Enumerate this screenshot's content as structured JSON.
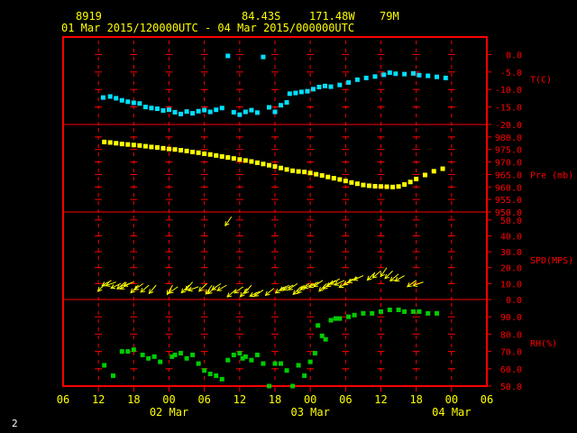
{
  "header": {
    "station": "8919",
    "lat": "84.43S",
    "lon": "171.48W",
    "elev": "79M",
    "time_range": "01 Mar 2015/120000UTC - 04 Mar 2015/000000UTC"
  },
  "page_number": "2",
  "colors": {
    "background": "#000000",
    "frame": "#ff0000",
    "grid": "#ff0000",
    "text": "#ffff00",
    "temperature": "#00e0ff",
    "pressure": "#ffff00",
    "wind": "#ffff00",
    "rh": "#00cc00"
  },
  "chart_data": {
    "type": "scatter",
    "x_axis": {
      "unit": "hours since 01 Mar 2015 06 UTC",
      "range": [
        0,
        72
      ],
      "tick_labels": [
        "06",
        "12",
        "18",
        "00",
        "06",
        "12",
        "18",
        "00",
        "06",
        "12",
        "18",
        "00",
        "06"
      ],
      "date_labels": [
        {
          "label": "02 Mar",
          "x": 18
        },
        {
          "label": "03 Mar",
          "x": 42
        },
        {
          "label": "04 Mar",
          "x": 66
        }
      ]
    },
    "panels": [
      {
        "name": "temperature",
        "ylabel": "T(C)",
        "ylim": [
          -20,
          5
        ],
        "ticks": [
          0,
          -5,
          -10,
          -15,
          -20
        ],
        "tick_labels": [
          "0.0",
          "-5.0",
          "-10.0",
          "-15.0",
          "-20.0"
        ],
        "points": [
          [
            6.8,
            -12.3
          ],
          [
            8,
            -12.0
          ],
          [
            9,
            -12.5
          ],
          [
            10,
            -13.1
          ],
          [
            11,
            -13.5
          ],
          [
            12,
            -13.8
          ],
          [
            13,
            -14.0
          ],
          [
            14,
            -15.0
          ],
          [
            15,
            -15.3
          ],
          [
            16,
            -15.5
          ],
          [
            17,
            -16.0
          ],
          [
            18,
            -15.8
          ],
          [
            19,
            -16.5
          ],
          [
            20,
            -17.0
          ],
          [
            21,
            -16.3
          ],
          [
            22,
            -16.8
          ],
          [
            23,
            -16.2
          ],
          [
            24,
            -15.9
          ],
          [
            25,
            -16.4
          ],
          [
            26,
            -15.8
          ],
          [
            27,
            -15.3
          ],
          [
            28,
            -0.4
          ],
          [
            29,
            -16.5
          ],
          [
            30,
            -17.2
          ],
          [
            31,
            -16.4
          ],
          [
            32,
            -15.9
          ],
          [
            33,
            -16.6
          ],
          [
            34,
            -0.7
          ],
          [
            35,
            -15.1
          ],
          [
            36,
            -16.4
          ],
          [
            37,
            -14.5
          ],
          [
            38,
            -13.7
          ],
          [
            38.5,
            -11.2
          ],
          [
            39.5,
            -11.0
          ],
          [
            40.5,
            -10.7
          ],
          [
            41.5,
            -10.5
          ],
          [
            42.5,
            -9.9
          ],
          [
            43.5,
            -9.3
          ],
          [
            44.5,
            -9.0
          ],
          [
            45.5,
            -9.2
          ],
          [
            47,
            -8.7
          ],
          [
            48.5,
            -8.0
          ],
          [
            50,
            -7.2
          ],
          [
            51.5,
            -6.7
          ],
          [
            53,
            -6.3
          ],
          [
            54.5,
            -5.8
          ],
          [
            55.5,
            -5.2
          ],
          [
            56.5,
            -5.5
          ],
          [
            58,
            -5.6
          ],
          [
            59.5,
            -5.4
          ],
          [
            60.5,
            -5.9
          ],
          [
            62,
            -6.1
          ],
          [
            63.5,
            -6.4
          ],
          [
            65,
            -6.7
          ]
        ]
      },
      {
        "name": "pressure",
        "ylabel": "Pre (mb)",
        "ylim": [
          950,
          985
        ],
        "ticks": [
          980,
          975,
          970,
          965,
          960,
          955,
          950
        ],
        "tick_labels": [
          "980.0",
          "975.0",
          "970.0",
          "965.0",
          "960.0",
          "955.0",
          "950.0"
        ],
        "points": [
          [
            7,
            978.0
          ],
          [
            8,
            977.8
          ],
          [
            9,
            977.5
          ],
          [
            10,
            977.2
          ],
          [
            11,
            977.0
          ],
          [
            12,
            976.8
          ],
          [
            13,
            976.6
          ],
          [
            14,
            976.3
          ],
          [
            15,
            976.0
          ],
          [
            16,
            975.8
          ],
          [
            17,
            975.5
          ],
          [
            18,
            975.2
          ],
          [
            19,
            975.0
          ],
          [
            20,
            974.7
          ],
          [
            21,
            974.4
          ],
          [
            22,
            974.0
          ],
          [
            23,
            973.7
          ],
          [
            24,
            973.3
          ],
          [
            25,
            973.0
          ],
          [
            26,
            972.6
          ],
          [
            27,
            972.2
          ],
          [
            28,
            971.8
          ],
          [
            29,
            971.4
          ],
          [
            30,
            971.0
          ],
          [
            31,
            970.6
          ],
          [
            32,
            970.2
          ],
          [
            33,
            969.7
          ],
          [
            34,
            969.2
          ],
          [
            35,
            968.7
          ],
          [
            36,
            968.2
          ],
          [
            37,
            967.6
          ],
          [
            38,
            967.0
          ],
          [
            39,
            966.5
          ],
          [
            40,
            966.2
          ],
          [
            41,
            966.0
          ],
          [
            42,
            965.6
          ],
          [
            43,
            965.1
          ],
          [
            44,
            964.6
          ],
          [
            45,
            964.0
          ],
          [
            46,
            963.5
          ],
          [
            47,
            963.0
          ],
          [
            48,
            962.4
          ],
          [
            49,
            961.8
          ],
          [
            50,
            961.3
          ],
          [
            51,
            960.8
          ],
          [
            52,
            960.5
          ],
          [
            53,
            960.3
          ],
          [
            54,
            960.2
          ],
          [
            55,
            960.1
          ],
          [
            56,
            960.0
          ],
          [
            57,
            960.2
          ],
          [
            58,
            961.0
          ],
          [
            59,
            962.0
          ],
          [
            60,
            963.2
          ],
          [
            61.5,
            964.8
          ],
          [
            63,
            966.3
          ],
          [
            64.5,
            967.3
          ]
        ]
      },
      {
        "name": "wind_speed",
        "ylabel": "SPD(MPS)",
        "ylim": [
          0,
          55
        ],
        "ticks": [
          50,
          40,
          30,
          20,
          10,
          0
        ],
        "tick_labels": [
          "50.0",
          "40.0",
          "30.0",
          "20.0",
          "10.0",
          "0.0"
        ],
        "barbs": [
          [
            7.2,
            10,
            225
          ],
          [
            8.2,
            12,
            240
          ],
          [
            9,
            11,
            250
          ],
          [
            9.8,
            10,
            245
          ],
          [
            10.6,
            11,
            230
          ],
          [
            11.3,
            10,
            240
          ],
          [
            12,
            11,
            250
          ],
          [
            12.8,
            9,
            225
          ],
          [
            13.6,
            10,
            235
          ],
          [
            14.6,
            9,
            230
          ],
          [
            15.8,
            9,
            220
          ],
          [
            18.6,
            9,
            210
          ],
          [
            19.5,
            8,
            235
          ],
          [
            21.4,
            9,
            225
          ],
          [
            22,
            11,
            220
          ],
          [
            23,
            8,
            250
          ],
          [
            24.4,
            10,
            225
          ],
          [
            25.3,
            9,
            215
          ],
          [
            26,
            8,
            230
          ],
          [
            26.8,
            10,
            235
          ],
          [
            27.8,
            9,
            240
          ],
          [
            28.6,
            52,
            215
          ],
          [
            29.3,
            6,
            230
          ],
          [
            30.6,
            8,
            235
          ],
          [
            31.3,
            7,
            220
          ],
          [
            32,
            9,
            220
          ],
          [
            33.4,
            5,
            245
          ],
          [
            34,
            6,
            235
          ],
          [
            35.8,
            7,
            230
          ],
          [
            37.6,
            8,
            235
          ],
          [
            38.4,
            9,
            240
          ],
          [
            39.1,
            9,
            245
          ],
          [
            39.8,
            10,
            235
          ],
          [
            40.4,
            8,
            225
          ],
          [
            41,
            9,
            220
          ],
          [
            41.8,
            10,
            235
          ],
          [
            42.6,
            10,
            245
          ],
          [
            43.4,
            11,
            240
          ],
          [
            44.1,
            12,
            235
          ],
          [
            44.8,
            10,
            225
          ],
          [
            45.6,
            11,
            230
          ],
          [
            46.3,
            12,
            235
          ],
          [
            47,
            13,
            240
          ],
          [
            47.8,
            12,
            245
          ],
          [
            48.5,
            11,
            240
          ],
          [
            49.2,
            13,
            235
          ],
          [
            50,
            14,
            240
          ],
          [
            51,
            15,
            245
          ],
          [
            53,
            17,
            225
          ],
          [
            54,
            18,
            230
          ],
          [
            55,
            20,
            215
          ],
          [
            56,
            18,
            225
          ],
          [
            57,
            16,
            230
          ],
          [
            58,
            15,
            240
          ],
          [
            60,
            12,
            235
          ],
          [
            61.2,
            11,
            250
          ]
        ]
      },
      {
        "name": "relative_humidity",
        "ylabel": "RH(%)",
        "ylim": [
          50,
          100
        ],
        "ticks": [
          90,
          80,
          70,
          60,
          50
        ],
        "tick_labels": [
          "90.0",
          "80.0",
          "70.0",
          "60.0",
          "50.0"
        ],
        "points": [
          [
            7,
            62
          ],
          [
            8.5,
            56
          ],
          [
            10,
            70
          ],
          [
            11,
            70
          ],
          [
            12,
            71
          ],
          [
            13.5,
            68
          ],
          [
            14.5,
            66
          ],
          [
            15.5,
            67
          ],
          [
            16.5,
            64
          ],
          [
            18.5,
            67
          ],
          [
            19,
            68
          ],
          [
            20,
            69
          ],
          [
            21,
            66
          ],
          [
            22,
            68
          ],
          [
            23,
            63
          ],
          [
            24,
            59
          ],
          [
            25,
            57
          ],
          [
            26,
            56
          ],
          [
            27,
            54
          ],
          [
            28,
            65
          ],
          [
            29,
            68
          ],
          [
            30,
            69
          ],
          [
            30.5,
            66
          ],
          [
            31,
            67
          ],
          [
            32,
            65
          ],
          [
            33,
            68
          ],
          [
            34,
            63
          ],
          [
            35,
            50
          ],
          [
            36,
            63
          ],
          [
            37,
            63
          ],
          [
            38,
            59
          ],
          [
            39,
            50
          ],
          [
            40,
            62
          ],
          [
            41,
            56
          ],
          [
            42,
            64
          ],
          [
            42.8,
            69
          ],
          [
            43.3,
            85
          ],
          [
            44,
            79
          ],
          [
            44.6,
            77
          ],
          [
            45.5,
            88
          ],
          [
            46.3,
            89
          ],
          [
            47,
            89
          ],
          [
            48.5,
            90
          ],
          [
            49.5,
            91
          ],
          [
            51,
            92
          ],
          [
            52.5,
            92
          ],
          [
            54,
            93
          ],
          [
            55.5,
            94
          ],
          [
            57,
            94
          ],
          [
            58,
            93
          ],
          [
            59.5,
            93
          ],
          [
            60.5,
            93
          ],
          [
            62,
            92
          ],
          [
            63.5,
            92
          ]
        ]
      }
    ]
  }
}
